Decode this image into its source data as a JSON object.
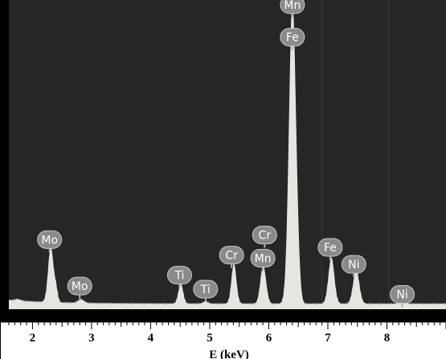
{
  "chart_data": {
    "type": "line",
    "title": "",
    "xlabel": "E (keV)",
    "ylabel": "",
    "xlim": [
      1.6,
      9.0
    ],
    "ylim": [
      0,
      1.0
    ],
    "x_ticks": [
      2,
      3,
      4,
      5,
      6,
      7,
      8
    ],
    "grid": false,
    "legend": "none",
    "colors": {
      "plot_background": "#262626",
      "spectrum_fill": "#e6e6e0",
      "label_badge": "#8a8a8a",
      "label_text": "#ffffff",
      "axis_background": "#ffffff",
      "axis_text": "#000000"
    },
    "peaks": [
      {
        "x": 1.75,
        "y": 0.005,
        "width": 0.05
      },
      {
        "x": 2.31,
        "y": 0.18,
        "width": 0.045
      },
      {
        "x": 2.4,
        "y": 0.04,
        "width": 0.03
      },
      {
        "x": 2.82,
        "y": 0.012,
        "width": 0.05
      },
      {
        "x": 4.51,
        "y": 0.065,
        "width": 0.04
      },
      {
        "x": 4.93,
        "y": 0.008,
        "width": 0.04
      },
      {
        "x": 5.41,
        "y": 0.13,
        "width": 0.042
      },
      {
        "x": 5.9,
        "y": 0.115,
        "width": 0.045
      },
      {
        "x": 5.95,
        "y": 0.02,
        "width": 0.04
      },
      {
        "x": 6.4,
        "y": 0.98,
        "width": 0.058
      },
      {
        "x": 6.49,
        "y": 0.06,
        "width": 0.04
      },
      {
        "x": 7.06,
        "y": 0.15,
        "width": 0.05
      },
      {
        "x": 7.48,
        "y": 0.11,
        "width": 0.052
      },
      {
        "x": 8.26,
        "y": 0.008,
        "width": 0.05
      }
    ],
    "baseline": 0.018,
    "peak_labels": [
      {
        "text": "Mo",
        "x": 2.29,
        "y": 0.225
      },
      {
        "text": "Mo",
        "x": 2.8,
        "y": 0.075
      },
      {
        "text": "Ti",
        "x": 4.49,
        "y": 0.11
      },
      {
        "text": "Ti",
        "x": 4.93,
        "y": 0.065
      },
      {
        "text": "Cr",
        "x": 5.37,
        "y": 0.175
      },
      {
        "text": "Cr",
        "x": 5.93,
        "y": 0.24
      },
      {
        "text": "Mn",
        "x": 5.9,
        "y": 0.165
      },
      {
        "text": "Mn",
        "x": 6.4,
        "y": 0.985
      },
      {
        "text": "Fe",
        "x": 6.4,
        "y": 0.88
      },
      {
        "text": "Fe",
        "x": 7.04,
        "y": 0.2
      },
      {
        "text": "Ni",
        "x": 7.44,
        "y": 0.145
      },
      {
        "text": "Ni",
        "x": 8.26,
        "y": 0.048
      }
    ]
  }
}
